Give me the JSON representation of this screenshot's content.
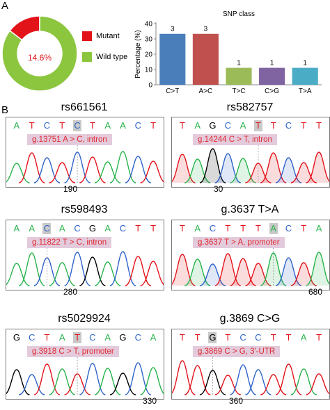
{
  "panel_labels": {
    "a": "A",
    "b": "B"
  },
  "donut": {
    "center_label": "14.6%",
    "mutant_fraction": 0.146,
    "legend": [
      {
        "label": "Mutant",
        "color": "#e3131a"
      },
      {
        "label": "Wild type",
        "color": "#8cc63f"
      }
    ]
  },
  "chart_data": {
    "type": "bar",
    "title": "SNP class",
    "ylabel": "Percentage (%)",
    "xlabel": "",
    "categories": [
      "C>T",
      "A>C",
      "T>C",
      "C>G",
      "T>A"
    ],
    "values": [
      33.3,
      33.3,
      11.1,
      11.1,
      11.1
    ],
    "counts": [
      "3",
      "3",
      "1",
      "1",
      "1"
    ],
    "colors": [
      "#4a7ebb",
      "#c0504d",
      "#9bbb59",
      "#8064a2",
      "#4bacc6"
    ],
    "ylim": [
      0,
      40
    ],
    "yticks": [
      "0",
      "10",
      "20",
      "30",
      "40"
    ],
    "grid": false
  },
  "traces": [
    {
      "title": "rs661561",
      "bases": [
        "A",
        "T",
        "C",
        "T",
        "C",
        "T",
        "A",
        "A",
        "C",
        "T"
      ],
      "highlight": 4,
      "mutation": "g.13751 A > C, intron",
      "position": "190"
    },
    {
      "title": "rs582757",
      "bases": [
        "T",
        "A",
        "G",
        "C",
        "A",
        "T",
        "T",
        "C",
        "T",
        "T"
      ],
      "highlight": 5,
      "mutation": "g.14244 C > T, intron",
      "position": "30"
    },
    {
      "title": "rs598493",
      "bases": [
        "A",
        "A",
        "C",
        "A",
        "C",
        "G",
        "A",
        "C",
        "T",
        "T"
      ],
      "highlight": 2,
      "mutation": "g.11822 T > C, intron",
      "position": "280"
    },
    {
      "title": "g.3637 T>A",
      "bases": [
        "T",
        "A",
        "C",
        "T",
        "T",
        "T",
        "A",
        "C",
        "T",
        "A"
      ],
      "highlight": 6,
      "mutation": "g.3637 T > A, promoter",
      "position": "680"
    },
    {
      "title": "rs5029924",
      "bases": [
        "G",
        "C",
        "T",
        "A",
        "T",
        "C",
        "A",
        "G",
        "C",
        "A"
      ],
      "highlight": 4,
      "mutation": "g.3918 C > T, promoter",
      "position": "330"
    },
    {
      "title": "g.3869 C>G",
      "bases": [
        "T",
        "T",
        "G",
        "T",
        "C",
        "C",
        "T",
        "T",
        "A",
        "T"
      ],
      "highlight": 2,
      "mutation": "g.3869 C > G, 3'-UTR",
      "position": "360"
    }
  ],
  "base_colors": {
    "A": "#28b34b",
    "C": "#2e63c9",
    "G": "#000000",
    "T": "#e3131a"
  }
}
